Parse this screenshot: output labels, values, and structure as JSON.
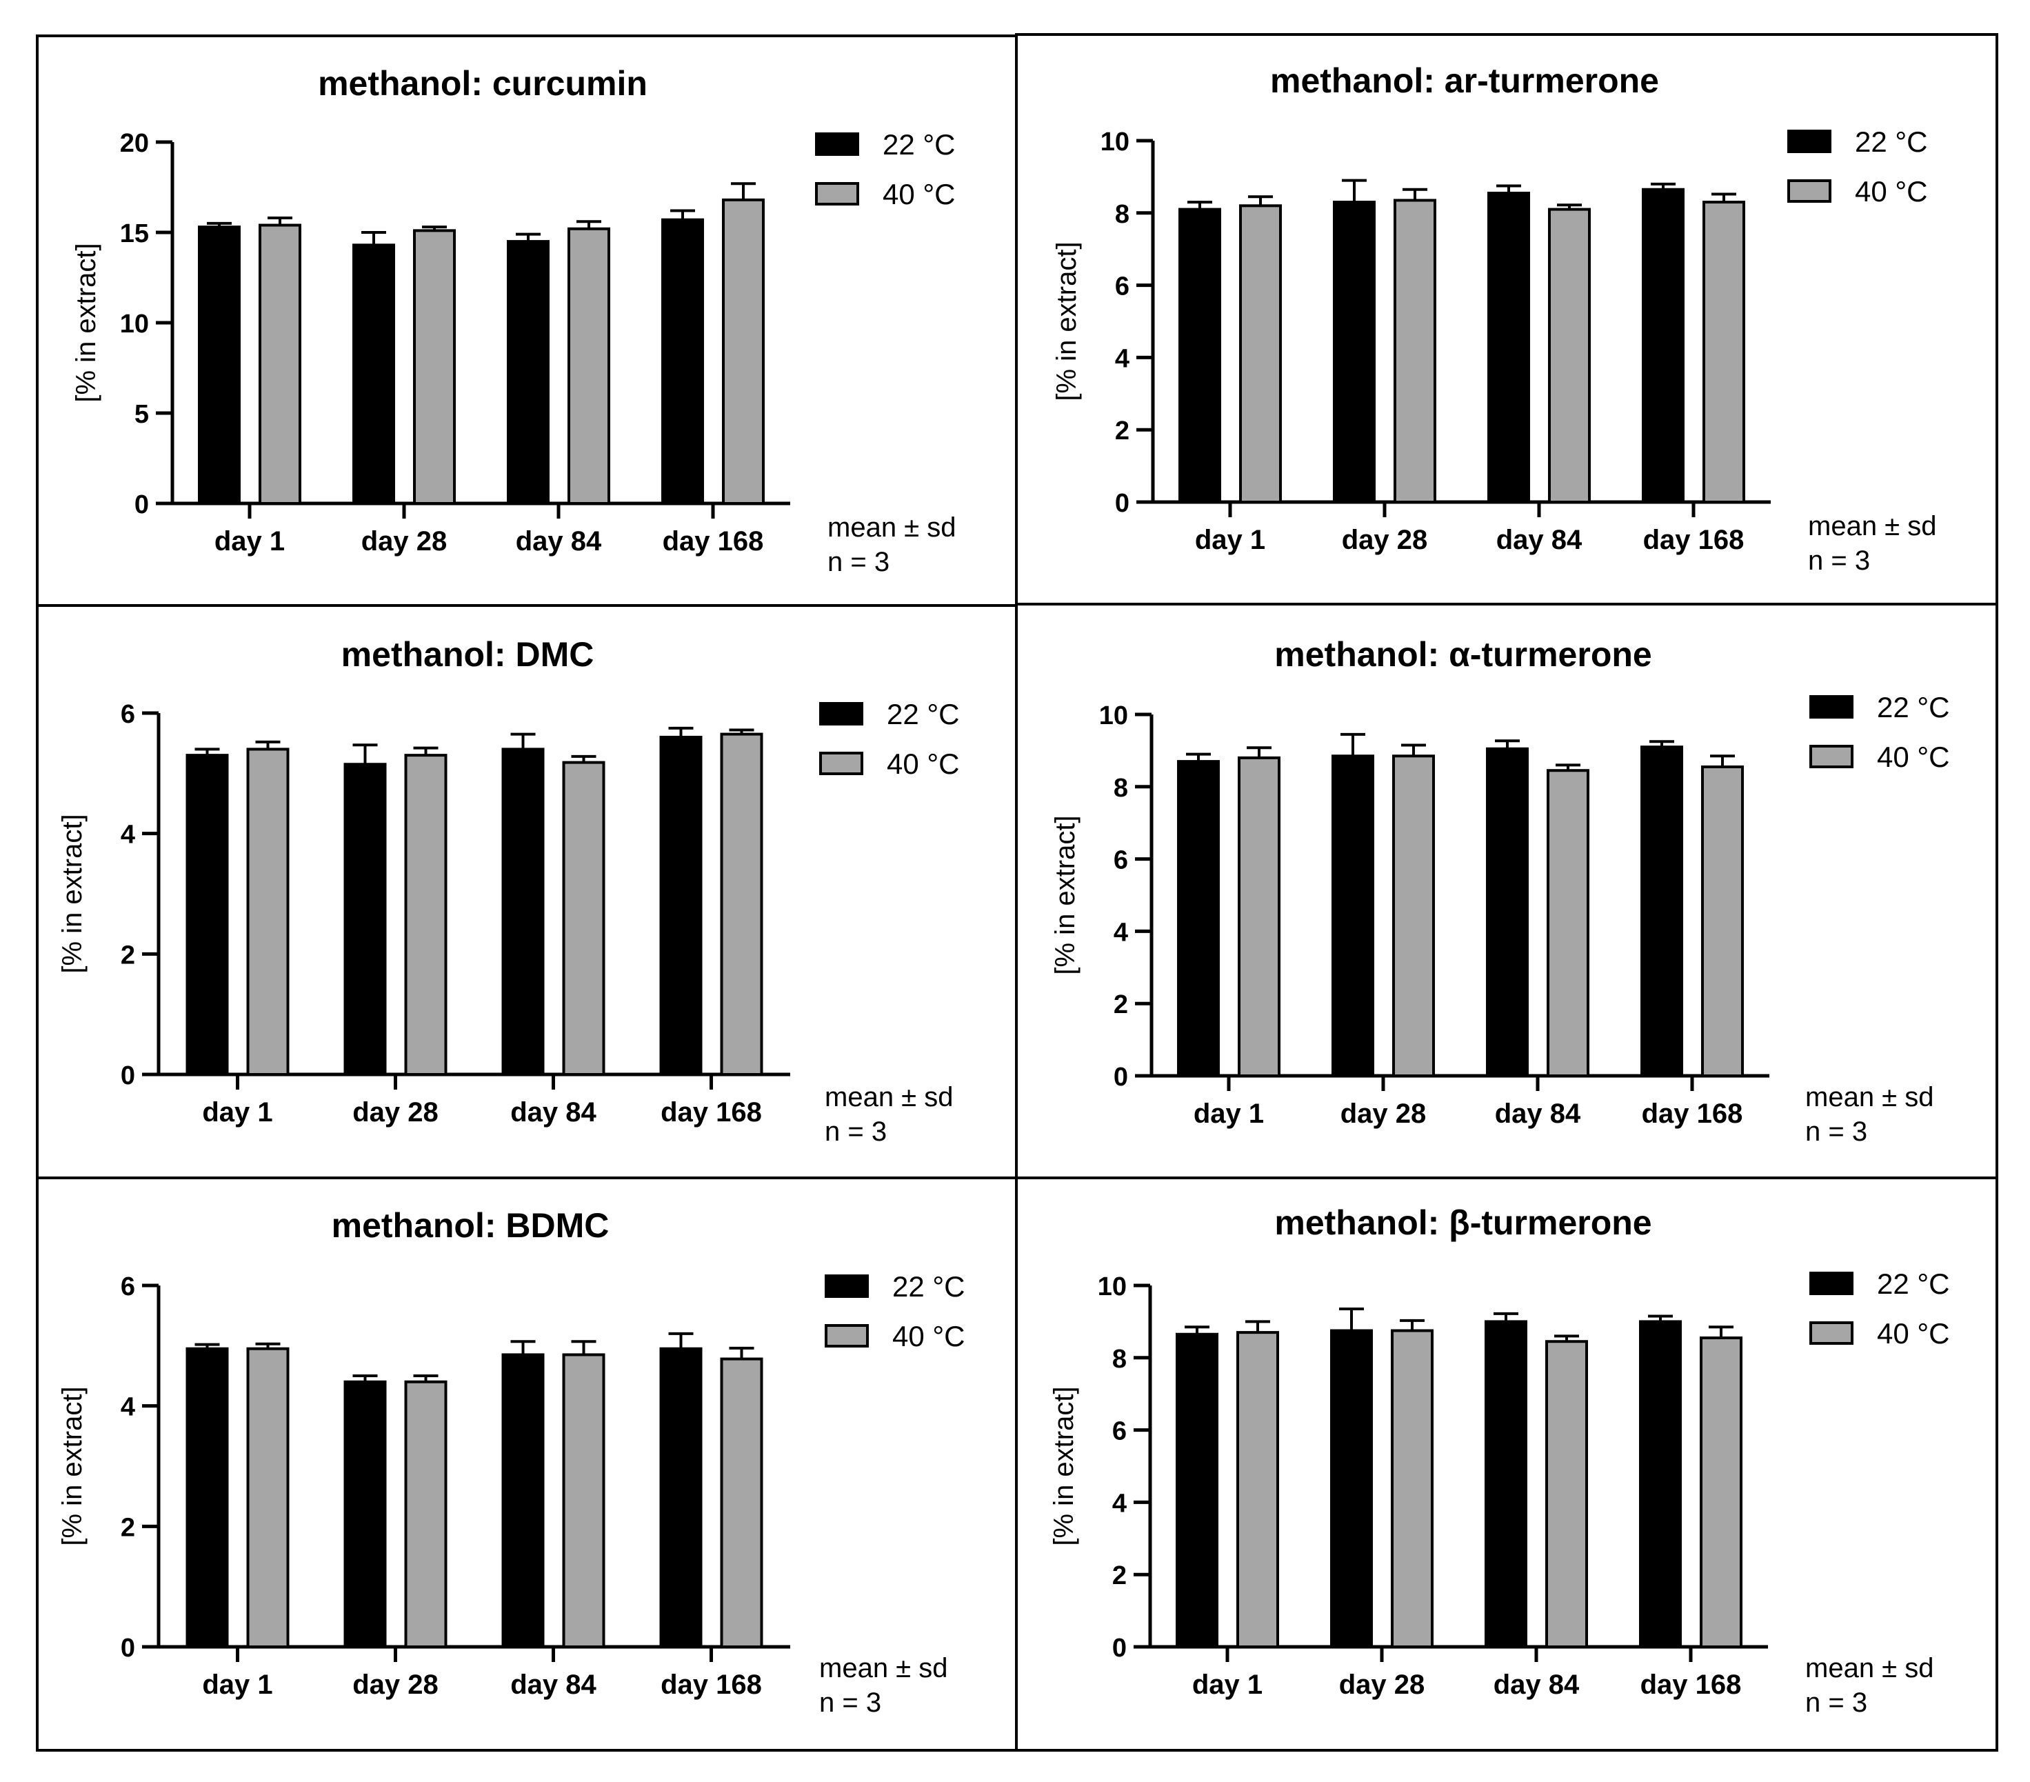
{
  "legend": {
    "series_22": "22 °C",
    "series_40": "40 °C"
  },
  "stats_note": {
    "line1": "mean ± sd",
    "line2": "n = 3"
  },
  "colors": {
    "series_22": "#000000",
    "series_40": "#a6a6a6",
    "frame": "#000000"
  },
  "chart_data": [
    {
      "type": "bar",
      "title": "methanol: curcumin",
      "ylabel": "[% in extract]",
      "xlabel": "",
      "categories": [
        "day 1",
        "day 28",
        "day 84",
        "day 168"
      ],
      "ylim": [
        0,
        20
      ],
      "yticks": [
        0,
        5,
        10,
        15,
        20
      ],
      "series": [
        {
          "name": "22 °C",
          "values": [
            15.3,
            14.3,
            14.5,
            15.7
          ],
          "sd": [
            0.2,
            0.7,
            0.4,
            0.5
          ]
        },
        {
          "name": "40 °C",
          "values": [
            15.4,
            15.1,
            15.2,
            16.8
          ],
          "sd": [
            0.4,
            0.2,
            0.4,
            0.9
          ]
        }
      ]
    },
    {
      "type": "bar",
      "title": "methanol: ar-turmerone",
      "ylabel": "[% in extract]",
      "xlabel": "",
      "categories": [
        "day 1",
        "day 28",
        "day 84",
        "day 168"
      ],
      "ylim": [
        0,
        10
      ],
      "yticks": [
        0,
        2,
        4,
        6,
        8,
        10
      ],
      "series": [
        {
          "name": "22 °C",
          "values": [
            8.1,
            8.3,
            8.55,
            8.65
          ],
          "sd": [
            0.2,
            0.6,
            0.2,
            0.15
          ]
        },
        {
          "name": "40 °C",
          "values": [
            8.2,
            8.35,
            8.1,
            8.3
          ],
          "sd": [
            0.25,
            0.3,
            0.12,
            0.22
          ]
        }
      ]
    },
    {
      "type": "bar",
      "title": "methanol: DMC",
      "ylabel": "[% in extract]",
      "xlabel": "",
      "categories": [
        "day 1",
        "day 28",
        "day 84",
        "day 168"
      ],
      "ylim": [
        0,
        6
      ],
      "yticks": [
        0,
        2,
        4,
        6
      ],
      "series": [
        {
          "name": "22 °C",
          "values": [
            5.3,
            5.15,
            5.4,
            5.6
          ],
          "sd": [
            0.1,
            0.32,
            0.25,
            0.15
          ]
        },
        {
          "name": "40 °C",
          "values": [
            5.4,
            5.3,
            5.18,
            5.65
          ],
          "sd": [
            0.12,
            0.12,
            0.1,
            0.07
          ]
        }
      ]
    },
    {
      "type": "bar",
      "title": "methanol: α-turmerone",
      "ylabel": "[% in extract]",
      "xlabel": "",
      "categories": [
        "day 1",
        "day 28",
        "day 84",
        "day 168"
      ],
      "ylim": [
        0,
        10
      ],
      "yticks": [
        0,
        2,
        4,
        6,
        8,
        10
      ],
      "series": [
        {
          "name": "22 °C",
          "values": [
            8.7,
            8.85,
            9.05,
            9.1
          ],
          "sd": [
            0.2,
            0.6,
            0.22,
            0.15
          ]
        },
        {
          "name": "40 °C",
          "values": [
            8.8,
            8.85,
            8.45,
            8.55
          ],
          "sd": [
            0.28,
            0.3,
            0.15,
            0.3
          ]
        }
      ]
    },
    {
      "type": "bar",
      "title": "methanol: BDMC",
      "ylabel": "[% in extract]",
      "xlabel": "",
      "categories": [
        "day 1",
        "day 28",
        "day 84",
        "day 168"
      ],
      "ylim": [
        0,
        6
      ],
      "yticks": [
        0,
        2,
        4,
        6
      ],
      "series": [
        {
          "name": "22 °C",
          "values": [
            4.95,
            4.4,
            4.85,
            4.95
          ],
          "sd": [
            0.07,
            0.1,
            0.22,
            0.25
          ]
        },
        {
          "name": "40 °C",
          "values": [
            4.95,
            4.4,
            4.85,
            4.78
          ],
          "sd": [
            0.08,
            0.1,
            0.22,
            0.18
          ]
        }
      ]
    },
    {
      "type": "bar",
      "title": "methanol: β-turmerone",
      "ylabel": "[% in extract]",
      "xlabel": "",
      "categories": [
        "day 1",
        "day 28",
        "day 84",
        "day 168"
      ],
      "ylim": [
        0,
        10
      ],
      "yticks": [
        0,
        2,
        4,
        6,
        8,
        10
      ],
      "series": [
        {
          "name": "22 °C",
          "values": [
            8.65,
            8.75,
            9.0,
            9.0
          ],
          "sd": [
            0.2,
            0.6,
            0.22,
            0.15
          ]
        },
        {
          "name": "40 °C",
          "values": [
            8.7,
            8.75,
            8.45,
            8.55
          ],
          "sd": [
            0.3,
            0.28,
            0.15,
            0.3
          ]
        }
      ]
    }
  ]
}
